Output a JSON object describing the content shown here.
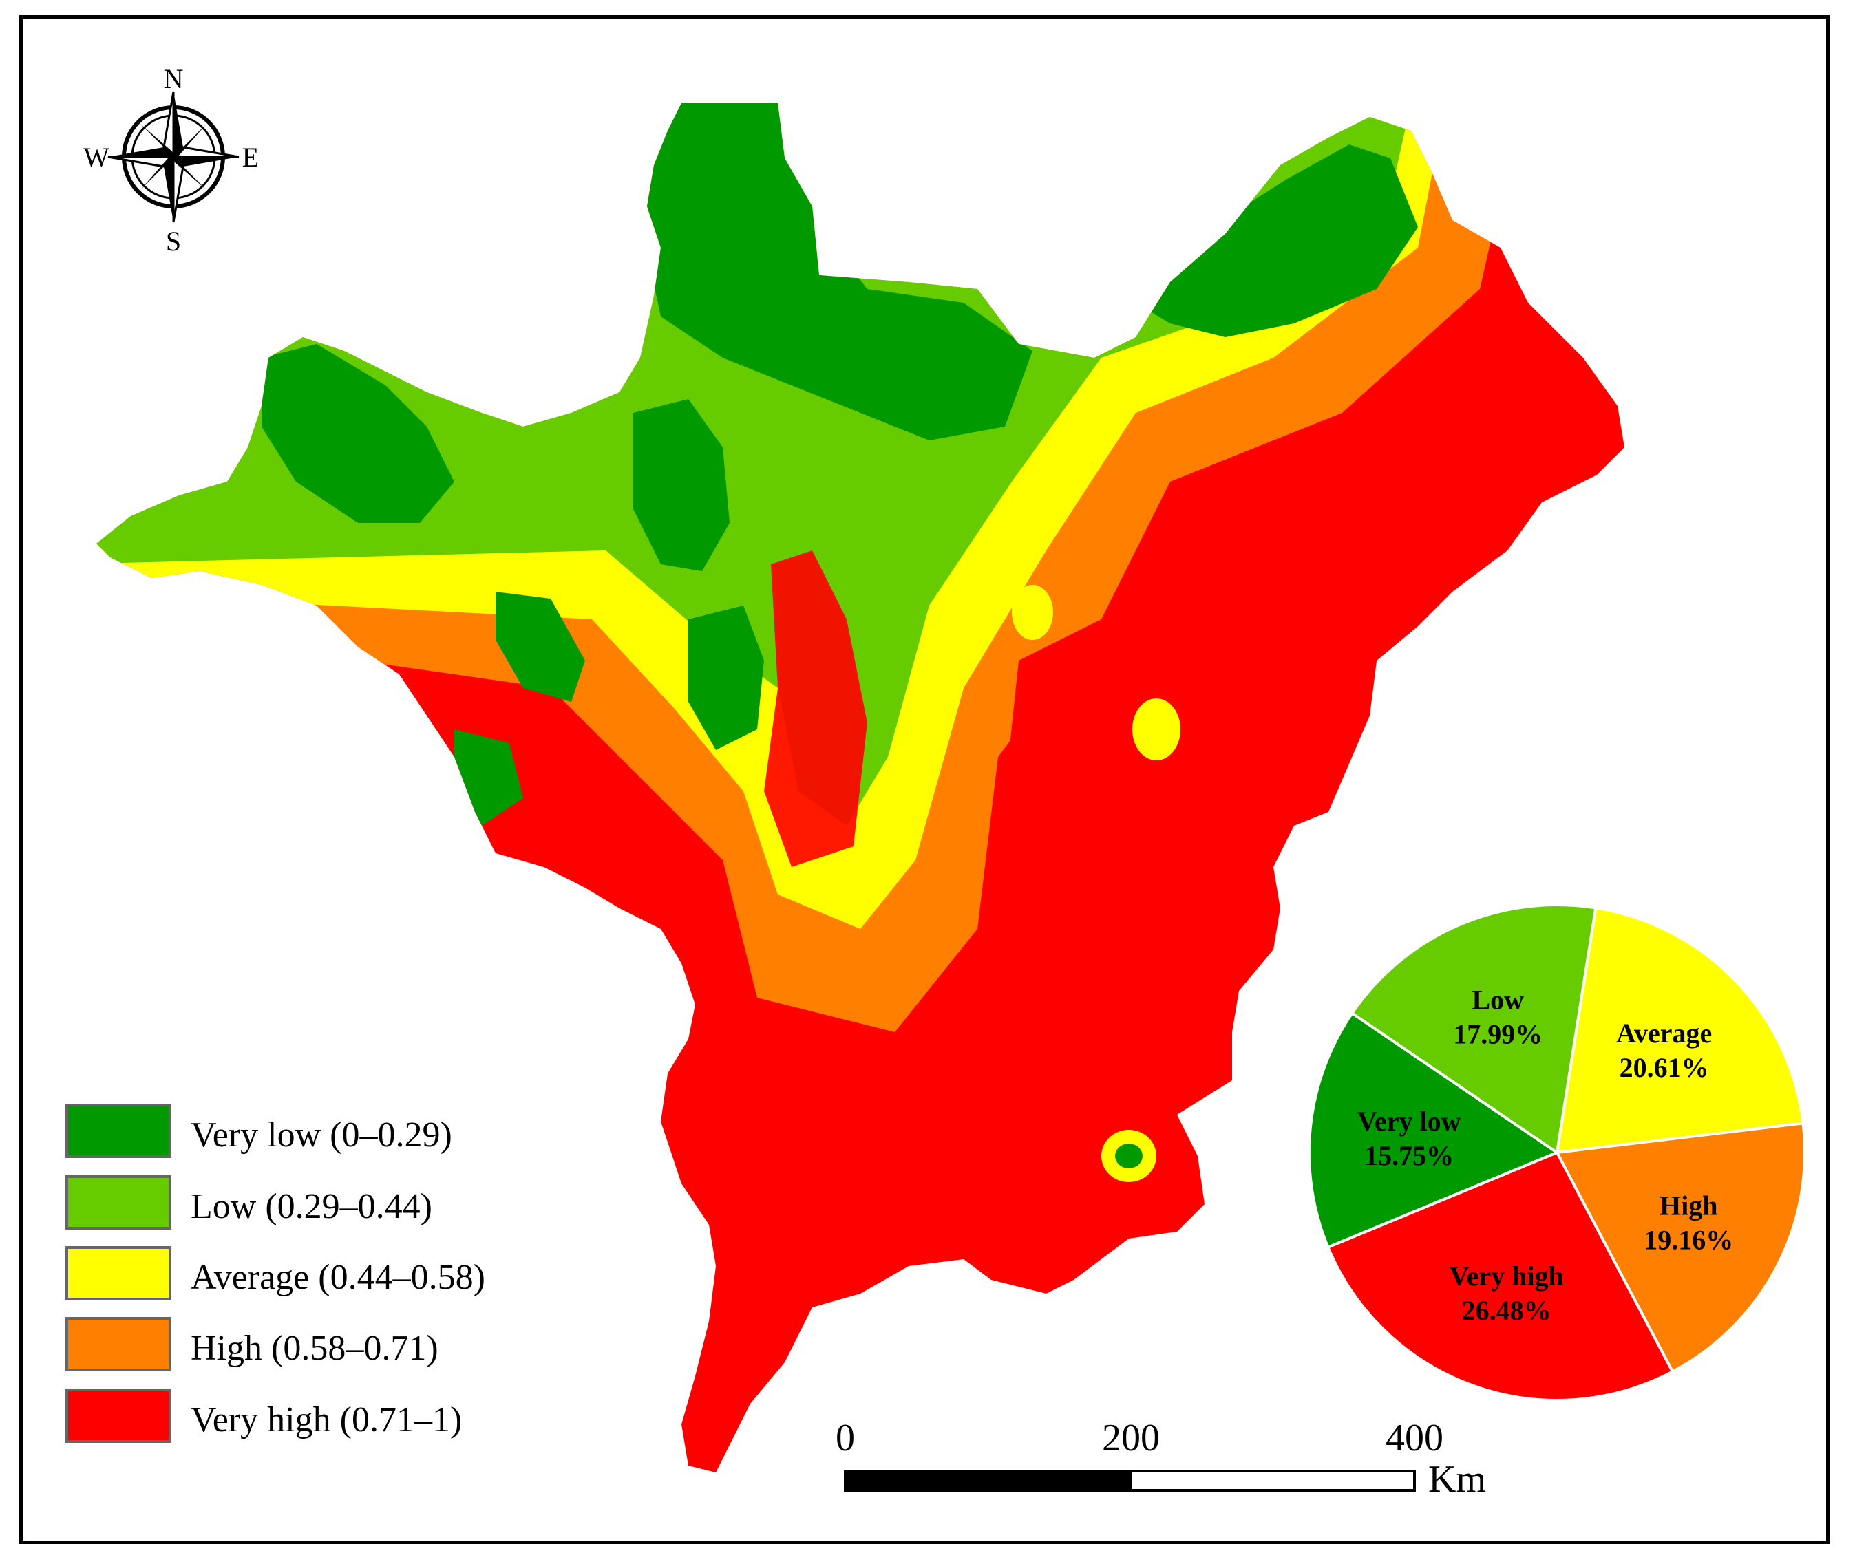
{
  "compass": {
    "north": "N",
    "south": "S",
    "east": "E",
    "west": "W"
  },
  "legend": {
    "items": [
      {
        "label": "Very low (0–0.29)",
        "color": "#009900"
      },
      {
        "label": "Low (0.29–0.44)",
        "color": "#66cc00"
      },
      {
        "label": "Average (0.44–0.58)",
        "color": "#ffff00"
      },
      {
        "label": "High (0.58–0.71)",
        "color": "#ff8000"
      },
      {
        "label": "Very high (0.71–1)",
        "color": "#ff0000"
      }
    ]
  },
  "scale_bar": {
    "ticks": [
      "0",
      "200",
      "400"
    ],
    "unit": "Km"
  },
  "chart_data": {
    "type": "pie",
    "slices": [
      {
        "name": "Average",
        "value": 20.61,
        "label": "20.61%",
        "color": "#ffff00"
      },
      {
        "name": "High",
        "value": 19.16,
        "label": "19.16%",
        "color": "#ff8000"
      },
      {
        "name": "Very high",
        "value": 26.48,
        "label": "26.48%",
        "color": "#ff0000"
      },
      {
        "name": "Very low",
        "value": 15.75,
        "label": "15.75%",
        "color": "#009900"
      },
      {
        "name": "Low",
        "value": 17.99,
        "label": "17.99%",
        "color": "#66cc00"
      }
    ]
  }
}
